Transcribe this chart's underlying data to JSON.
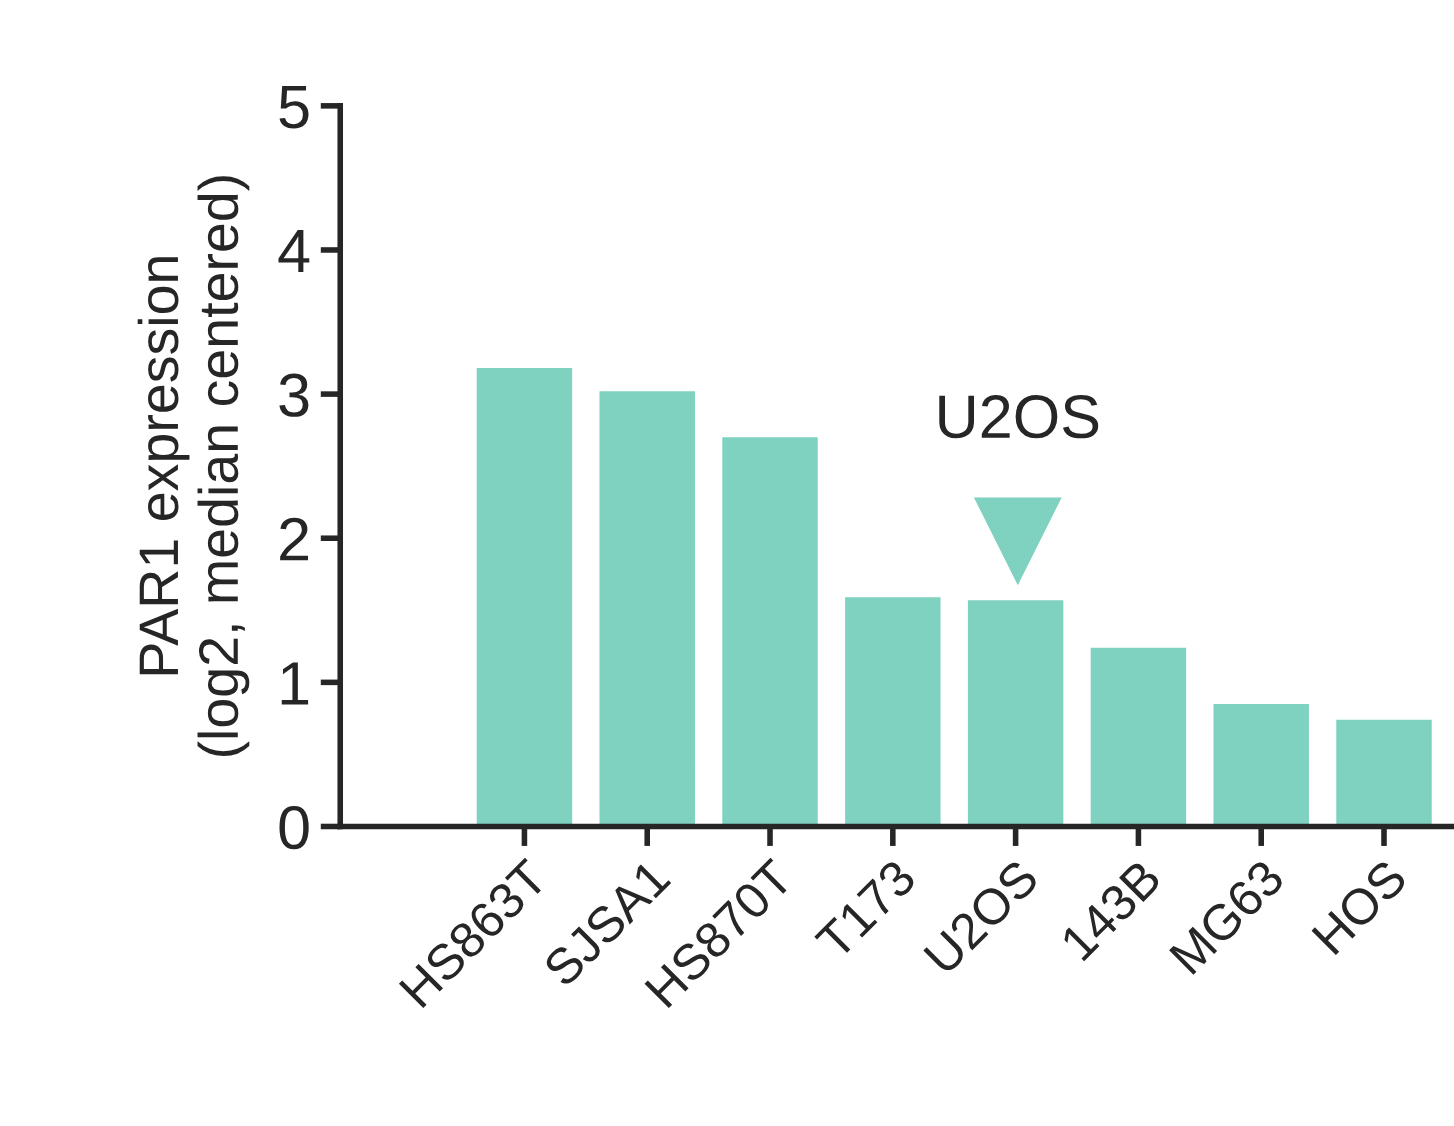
{
  "chart_data": {
    "type": "bar",
    "ylabel": "PAR1 expression\n(log2, median centered)",
    "categories": [
      "HS863T",
      "SJSA1",
      "HS870T",
      "T173",
      "U2OS",
      "143B",
      "MG63",
      "HOS"
    ],
    "values": [
      3.19,
      3.03,
      2.71,
      1.6,
      1.58,
      1.25,
      0.86,
      0.75
    ],
    "color": "#7fd1c0",
    "ylim": [
      0,
      5
    ],
    "yticks": [
      0,
      1,
      2,
      3,
      4,
      5
    ],
    "annotations": [
      "U2OS"
    ],
    "grid": false,
    "legend": false
  }
}
